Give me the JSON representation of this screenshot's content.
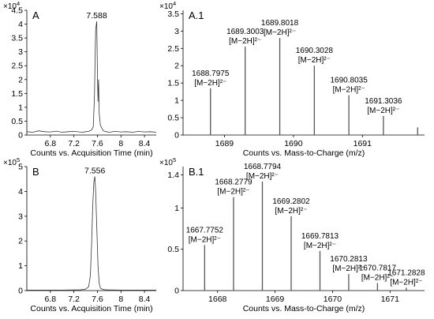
{
  "chart_data": [
    {
      "id": "A",
      "type": "line",
      "panel_label": "A",
      "exponent": "×10",
      "exponent_power": "4",
      "xlabel": "Counts vs. Acquisition Time (min)",
      "xlim": [
        6.4,
        8.6
      ],
      "ylim": [
        0,
        45000
      ],
      "xticks": [
        "6.8",
        "7.2",
        "7.6",
        "8",
        "8.4"
      ],
      "xtick_values": [
        6.8,
        7.2,
        7.6,
        8.0,
        8.4
      ],
      "yticks": [
        "0",
        "0.5",
        "1",
        "1.5",
        "2",
        "2.5",
        "3",
        "3.5",
        "4",
        "4.5"
      ],
      "ytick_values": [
        0,
        5000,
        10000,
        15000,
        20000,
        25000,
        30000,
        35000,
        40000,
        45000
      ],
      "peak_label": "7.588",
      "x": [
        6.4,
        6.5,
        6.6,
        6.7,
        6.8,
        6.9,
        7.0,
        7.1,
        7.2,
        7.3,
        7.35,
        7.4,
        7.45,
        7.5,
        7.53,
        7.55,
        7.57,
        7.588,
        7.6,
        7.61,
        7.62,
        7.63,
        7.65,
        7.7,
        7.75,
        7.8,
        7.9,
        8.0,
        8.1,
        8.2,
        8.3,
        8.4,
        8.5,
        8.6
      ],
      "y": [
        1200,
        1000,
        1500,
        1200,
        1100,
        1400,
        1000,
        1200,
        1300,
        1100,
        1000,
        1200,
        1300,
        1800,
        3000,
        14000,
        38000,
        41000,
        22000,
        12000,
        20000,
        8000,
        3500,
        1500,
        1200,
        1000,
        1300,
        1100,
        1200,
        1000,
        1300,
        1100,
        1200,
        1000
      ]
    },
    {
      "id": "A1",
      "type": "bar",
      "panel_label": "A.1",
      "exponent": "×10",
      "exponent_power": "4",
      "xlabel": "Counts vs. Mass-to-Charge (m/z)",
      "xlim": [
        1688.4,
        1691.9
      ],
      "ylim": [
        0,
        36000
      ],
      "xticks": [
        "1689",
        "1690",
        "1691"
      ],
      "xtick_values": [
        1689,
        1690,
        1691
      ],
      "yticks": [
        "0",
        "0.5",
        "1",
        "1.5",
        "2",
        "2.5",
        "3",
        "3.5"
      ],
      "ytick_values": [
        0,
        5000,
        10000,
        15000,
        20000,
        25000,
        30000,
        35000
      ],
      "peaks": [
        {
          "mz": 1688.7975,
          "intensity": 13500,
          "label": "1688.7975",
          "ion": "[M−2H]²⁻"
        },
        {
          "mz": 1689.3003,
          "intensity": 25500,
          "label": "1689.3003",
          "ion": "[M−2H]²⁻"
        },
        {
          "mz": 1689.8018,
          "intensity": 28000,
          "label": "1689.8018",
          "ion": "[M−2H]²⁻"
        },
        {
          "mz": 1690.3028,
          "intensity": 20000,
          "label": "1690.3028",
          "ion": "[M−2H]²⁻"
        },
        {
          "mz": 1690.8035,
          "intensity": 11500,
          "label": "1690.8035",
          "ion": "[M−2H]²⁻"
        },
        {
          "mz": 1691.3036,
          "intensity": 5500,
          "label": "1691.3036",
          "ion": "[M−2H]²⁻"
        },
        {
          "mz": 1691.8,
          "intensity": 2200,
          "label": "",
          "ion": ""
        }
      ]
    },
    {
      "id": "B",
      "type": "line",
      "panel_label": "B",
      "exponent": "×10",
      "exponent_power": "5",
      "xlabel": "Counts vs. Acquisition Time (min)",
      "xlim": [
        6.4,
        8.6
      ],
      "ylim": [
        0,
        500000
      ],
      "xticks": [
        "6.8",
        "7.2",
        "7.6",
        "8",
        "8.4"
      ],
      "xtick_values": [
        6.8,
        7.2,
        7.6,
        8.0,
        8.4
      ],
      "yticks": [
        "0",
        "1",
        "2",
        "3",
        "4",
        "5"
      ],
      "ytick_values": [
        0,
        100000,
        200000,
        300000,
        400000,
        500000
      ],
      "peak_label": "7.556",
      "x": [
        6.4,
        6.6,
        6.8,
        7.0,
        7.2,
        7.3,
        7.35,
        7.4,
        7.45,
        7.48,
        7.5,
        7.52,
        7.54,
        7.556,
        7.57,
        7.59,
        7.61,
        7.63,
        7.65,
        7.7,
        7.75,
        7.8,
        8.0,
        8.2,
        8.4,
        8.6
      ],
      "y": [
        2000,
        2000,
        2000,
        2000,
        2500,
        3000,
        4000,
        6000,
        15000,
        60000,
        180000,
        340000,
        440000,
        460000,
        400000,
        250000,
        100000,
        30000,
        10000,
        4000,
        3000,
        2500,
        2000,
        2000,
        2000,
        2000
      ]
    },
    {
      "id": "B1",
      "type": "bar",
      "panel_label": "B.1",
      "exponent": "×10",
      "exponent_power": "5",
      "xlabel": "Counts vs. Mass-to-Charge (m/z)",
      "xlim": [
        1667.4,
        1671.6
      ],
      "ylim": [
        0,
        150000
      ],
      "xticks": [
        "1668",
        "1669",
        "1670",
        "1671"
      ],
      "xtick_values": [
        1668,
        1669,
        1670,
        1671
      ],
      "yticks": [
        "0",
        "0.5",
        "1",
        "1.4"
      ],
      "ytick_values": [
        0,
        50000,
        100000,
        140000
      ],
      "peaks": [
        {
          "mz": 1667.7752,
          "intensity": 55000,
          "label": "1667.7752",
          "ion": "[M−2H]²⁻"
        },
        {
          "mz": 1668.2779,
          "intensity": 113000,
          "label": "1668.2779",
          "ion": "[M−2H]²⁻"
        },
        {
          "mz": 1668.7794,
          "intensity": 132000,
          "label": "1668.7794",
          "ion": "[M−2H]²⁻"
        },
        {
          "mz": 1669.2802,
          "intensity": 90000,
          "label": "1669.2802",
          "ion": "[M−2H]²⁻"
        },
        {
          "mz": 1669.7813,
          "intensity": 48000,
          "label": "1669.7813",
          "ion": "[M−2H]²⁻"
        },
        {
          "mz": 1670.2813,
          "intensity": 20000,
          "label": "1670.2813",
          "ion": "[M−2H]²⁻"
        },
        {
          "mz": 1670.7817,
          "intensity": 9000,
          "label": "1670.7817",
          "ion": "[M−2H]²⁻"
        },
        {
          "mz": 1671.2828,
          "intensity": 3500,
          "label": "1671.2828",
          "ion": "[M−2H]²⁻"
        }
      ]
    }
  ]
}
